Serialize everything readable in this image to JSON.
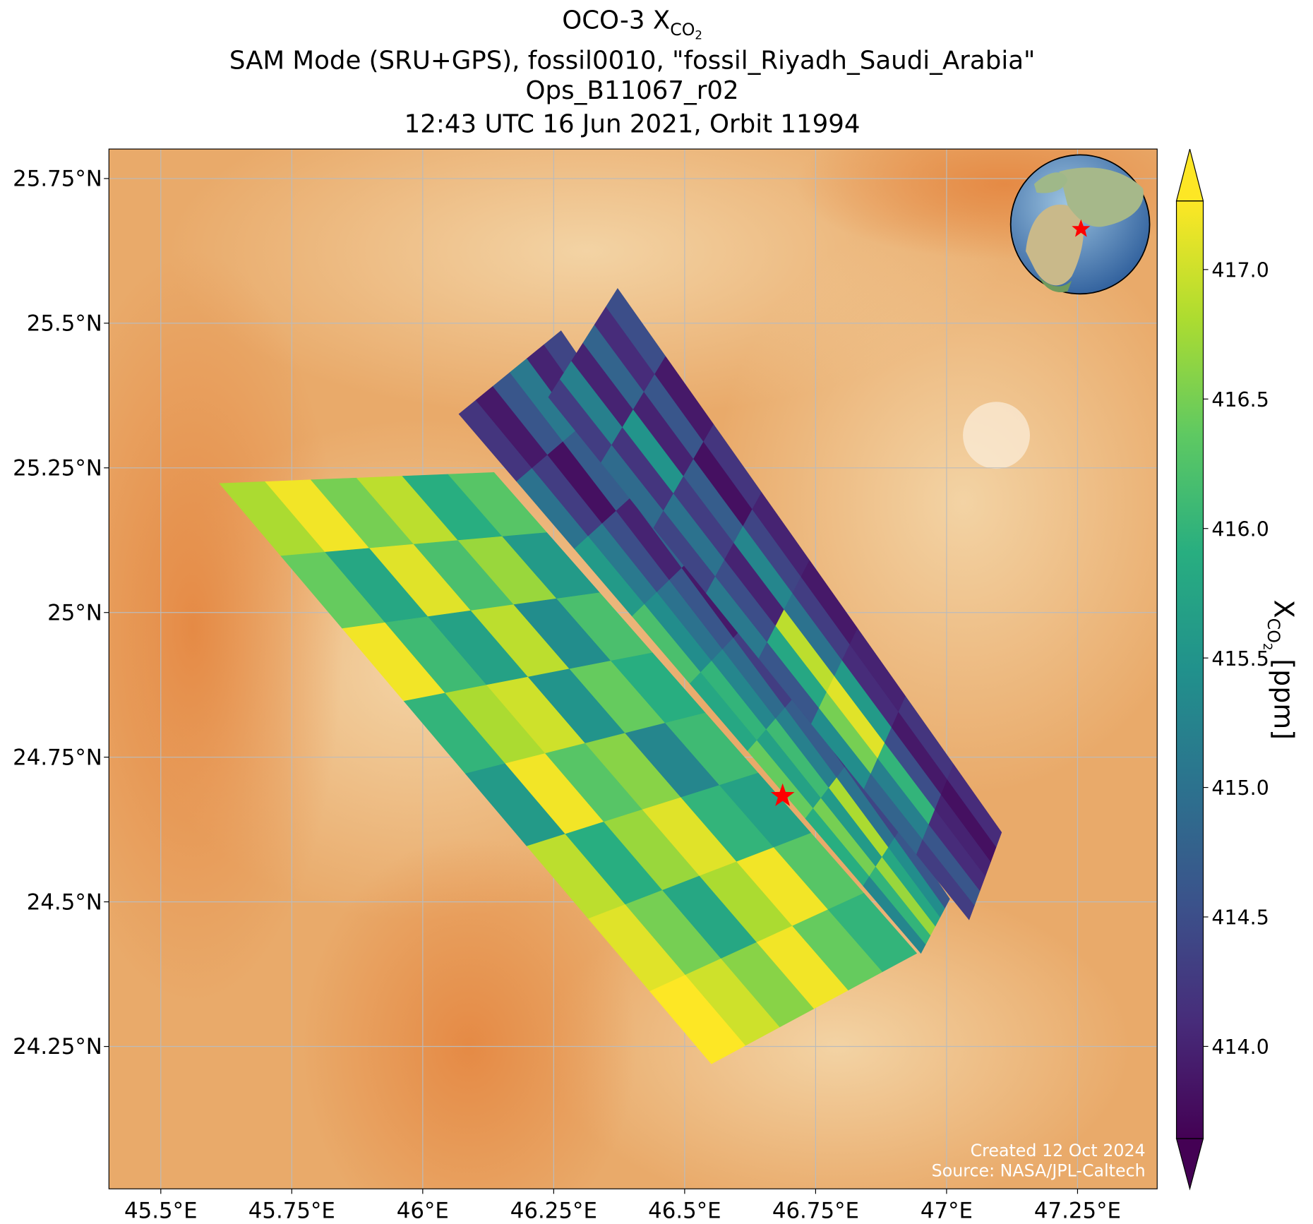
{
  "chart_data": {
    "type": "swath-map",
    "title": {
      "main": "OCO-3 X",
      "sub": "CO",
      "subsub": "2"
    },
    "subtitles": [
      "SAM Mode (SRU+GPS), fossil0010, \"fossil_Riyadh_Saudi_Arabia\"",
      "Ops_B11067_r02",
      "12:43 UTC 16 Jun 2021, Orbit 11994"
    ],
    "xlim": [
      45.401,
      47.402
    ],
    "ylim": [
      24.004,
      25.801
    ],
    "xticks": [
      {
        "value": 45.5,
        "label": "45.5°E"
      },
      {
        "value": 45.75,
        "label": "45.75°E"
      },
      {
        "value": 46,
        "label": "46°E"
      },
      {
        "value": 46.25,
        "label": "46.25°E"
      },
      {
        "value": 46.5,
        "label": "46.5°E"
      },
      {
        "value": 46.75,
        "label": "46.75°E"
      },
      {
        "value": 47,
        "label": "47°E"
      },
      {
        "value": 47.25,
        "label": "47.25°E"
      }
    ],
    "yticks": [
      {
        "value": 25.75,
        "label": "25.75°N"
      },
      {
        "value": 25.5,
        "label": "25.5°N"
      },
      {
        "value": 25.25,
        "label": "25.25°N"
      },
      {
        "value": 25,
        "label": "25°N"
      },
      {
        "value": 24.75,
        "label": "24.75°N"
      },
      {
        "value": 24.5,
        "label": "24.5°N"
      },
      {
        "value": 24.25,
        "label": "24.25°N"
      }
    ],
    "grid": true,
    "colormap": "viridis",
    "clim": [
      413.644,
      417.265
    ],
    "cticks": [
      {
        "value": 417,
        "label": "417.0"
      },
      416.5,
      {
        "value": 416,
        "label": "416.0"
      },
      415.5,
      {
        "value": 415,
        "label": "415.0"
      },
      414.5,
      {
        "value": 414,
        "label": "414.0"
      }
    ],
    "colorbar_label": {
      "main": "X",
      "sub": "CO",
      "subsub": "2",
      "unit": "[ppm]"
    },
    "target": [
      46.687,
      24.683
    ],
    "target_color": "#ff0000",
    "swaths": [
      {
        "corners": [
          [
            45.612,
            25.223
          ],
          [
            46.136,
            25.242
          ],
          [
            46.943,
            24.411
          ],
          [
            46.551,
            24.22
          ]
        ],
        "values": [
          [
            416.8,
            417.2,
            416.5,
            416.9,
            415.9,
            416.3
          ],
          [
            416.4,
            415.8,
            417.1,
            416.2,
            416.7,
            415.6
          ],
          [
            417.2,
            416.1,
            415.7,
            416.9,
            415.4,
            416.2
          ],
          [
            416.0,
            416.8,
            417.0,
            415.5,
            416.4,
            415.9
          ],
          [
            415.6,
            417.2,
            416.3,
            416.6,
            415.3,
            416.1
          ],
          [
            416.9,
            415.9,
            416.7,
            417.1,
            416.0,
            415.7
          ],
          [
            417.1,
            416.5,
            415.8,
            416.8,
            417.2,
            416.3
          ],
          [
            417.3,
            417.0,
            416.6,
            417.2,
            416.4,
            416.0
          ]
        ]
      },
      {
        "corners": [
          [
            46.069,
            25.343
          ],
          [
            46.264,
            25.487
          ],
          [
            47.006,
            24.505
          ],
          [
            46.951,
            24.411
          ]
        ],
        "values": [
          [
            414.2,
            413.9,
            414.6,
            415.1,
            414.0,
            414.4
          ],
          [
            415.0,
            414.3,
            413.8,
            414.7,
            415.3,
            414.1
          ],
          [
            415.6,
            415.1,
            414.5,
            414.0,
            414.8,
            414.2
          ],
          [
            416.2,
            415.4,
            415.0,
            414.6,
            413.9,
            414.5
          ],
          [
            415.8,
            416.0,
            415.3,
            414.9,
            414.3,
            414.0
          ],
          [
            416.4,
            415.7,
            416.1,
            415.2,
            414.7,
            414.2
          ],
          [
            415.9,
            416.5,
            415.6,
            416.8,
            415.0,
            414.4
          ],
          [
            415.3,
            416.0,
            416.7,
            415.8,
            415.4,
            414.6
          ]
        ]
      },
      {
        "corners": [
          [
            46.24,
            25.372
          ],
          [
            46.372,
            25.56
          ],
          [
            47.105,
            24.62
          ],
          [
            47.043,
            24.469
          ]
        ],
        "values": [
          [
            414.3,
            415.2,
            414.0,
            414.8,
            414.1,
            414.5
          ],
          [
            414.9,
            414.2,
            415.5,
            414.0,
            414.6,
            413.9
          ],
          [
            414.4,
            415.0,
            414.3,
            414.7,
            413.8,
            414.2
          ],
          [
            415.1,
            414.5,
            414.0,
            415.3,
            414.4,
            414.0
          ],
          [
            414.6,
            415.8,
            416.9,
            415.0,
            414.3,
            413.9
          ],
          [
            415.4,
            416.5,
            417.1,
            415.6,
            414.1,
            414.0
          ],
          [
            414.8,
            415.2,
            416.0,
            414.5,
            413.9,
            414.2
          ],
          [
            414.3,
            414.6,
            414.1,
            414.0,
            413.8,
            414.1
          ]
        ]
      }
    ],
    "credits": [
      "Created 12 Oct 2024",
      "Source: NASA/JPL-Caltech"
    ]
  }
}
